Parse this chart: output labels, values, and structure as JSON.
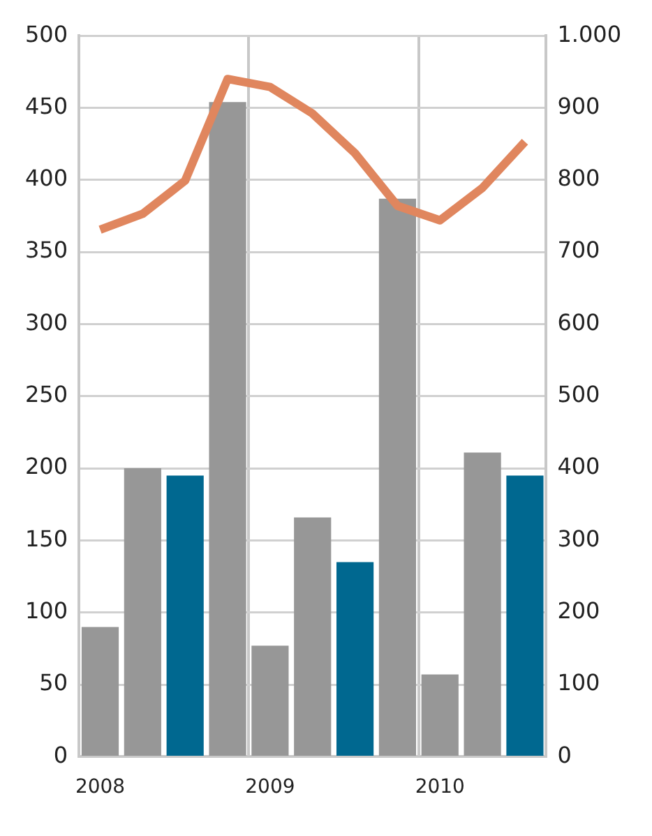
{
  "chart_data": {
    "type": "bar",
    "categories": [
      "2008",
      null,
      null,
      null,
      "2009",
      null,
      null,
      null,
      "2010",
      null,
      null
    ],
    "series": [
      {
        "colors": [
          "#979797",
          "#979797",
          "#006890",
          "#979797",
          "#979797",
          "#979797",
          "#006890",
          "#979797",
          "#979797",
          "#979797",
          "#006890"
        ],
        "values": [
          90,
          200,
          195,
          454,
          77,
          166,
          135,
          387,
          57,
          211,
          195
        ]
      },
      {
        "type": "line",
        "axis": "y2",
        "color": "#e0865e",
        "values": [
          731,
          753,
          799,
          940,
          929,
          892,
          837,
          764,
          744,
          789,
          853
        ]
      }
    ],
    "ylim": [
      0,
      500
    ],
    "yticks": [
      0,
      50,
      100,
      150,
      200,
      250,
      300,
      350,
      400,
      450,
      500
    ],
    "y2lim": [
      0,
      1000
    ],
    "y2ticks": [
      0,
      100,
      200,
      300,
      400,
      500,
      600,
      700,
      800,
      900,
      {
        "value": 1000,
        "label": "1.000"
      }
    ],
    "grid": true,
    "legend": false,
    "marker": "none",
    "line_style": "solid"
  }
}
